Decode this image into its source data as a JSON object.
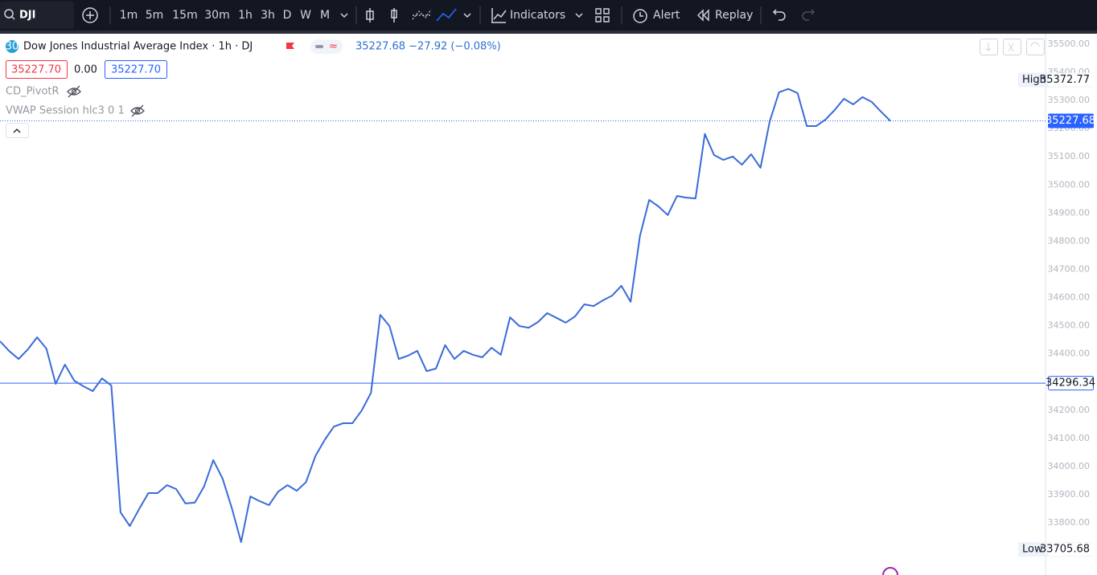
{
  "toolbar": {
    "symbol": "DJI",
    "timeframes": [
      "1m",
      "5m",
      "15m",
      "30m",
      "1h",
      "3h",
      "D",
      "W",
      "M"
    ],
    "active_timeframe": "1h",
    "indicators": "Indicators",
    "alert": "Alert",
    "replay": "Replay"
  },
  "legend": {
    "badge": "30",
    "title": "Dow Jones Industrial Average Index · 1h · DJ",
    "quote": "35227.68 −27.92 (−0.08%)",
    "open": "35227.70",
    "change": "0.00",
    "close": "35227.70",
    "studies": [
      "CD_PivotR",
      "VWAP Session hlc3 0 1"
    ]
  },
  "chart_data": {
    "type": "line",
    "color": "#3a6bd9",
    "ylim": [
      33615,
      35537
    ],
    "yticks": [
      {
        "value": 33800,
        "label": "33800.00"
      },
      {
        "value": 33900,
        "label": "33900.00"
      },
      {
        "value": 34000,
        "label": "34000.00"
      },
      {
        "value": 34100,
        "label": "34100.00"
      },
      {
        "value": 34200,
        "label": "34200.00"
      },
      {
        "value": 34300,
        "label": "34300.00"
      },
      {
        "value": 34400,
        "label": "34400.00"
      },
      {
        "value": 34500,
        "label": "34500.00"
      },
      {
        "value": 34600,
        "label": "34600.00"
      },
      {
        "value": 34700,
        "label": "34700.00"
      },
      {
        "value": 34800,
        "label": "34800.00"
      },
      {
        "value": 34900,
        "label": "34900.00"
      },
      {
        "value": 35000,
        "label": "35000.00"
      },
      {
        "value": 35100,
        "label": "35100.00"
      },
      {
        "value": 35200,
        "label": "35200.00"
      },
      {
        "value": 35300,
        "label": "35300.00"
      },
      {
        "value": 35400,
        "label": "35400.00"
      },
      {
        "value": 35500,
        "label": "35500.00"
      }
    ],
    "grid": false,
    "values": [
      34445,
      34410,
      34382,
      34416,
      34459,
      34419,
      34294,
      34362,
      34305,
      34285,
      34268,
      34313,
      34288,
      33837,
      33789,
      33849,
      33906,
      33906,
      33934,
      33920,
      33869,
      33872,
      33929,
      34023,
      33957,
      33852,
      33732,
      33894,
      33877,
      33863,
      33911,
      33934,
      33914,
      33945,
      34037,
      34094,
      34142,
      34154,
      34154,
      34199,
      34262,
      34539,
      34499,
      34382,
      34394,
      34411,
      34339,
      34348,
      34431,
      34382,
      34411,
      34397,
      34388,
      34422,
      34397,
      34530,
      34499,
      34493,
      34513,
      34545,
      34528,
      34511,
      34533,
      34576,
      34570,
      34590,
      34607,
      34642,
      34585,
      34819,
      34947,
      34924,
      34893,
      34961,
      34955,
      34952,
      35181,
      35106,
      35089,
      35101,
      35072,
      35109,
      35061,
      35226,
      35329,
      35341,
      35326,
      35209,
      35209,
      35232,
      35266,
      35306,
      35286,
      35312,
      35295,
      35260,
      35227.68
    ],
    "last_price": 35227.68,
    "hline": 34296.34,
    "high": {
      "label": "High",
      "value": 35372.77
    },
    "low": {
      "label": "Low",
      "value": 33705.68
    }
  }
}
